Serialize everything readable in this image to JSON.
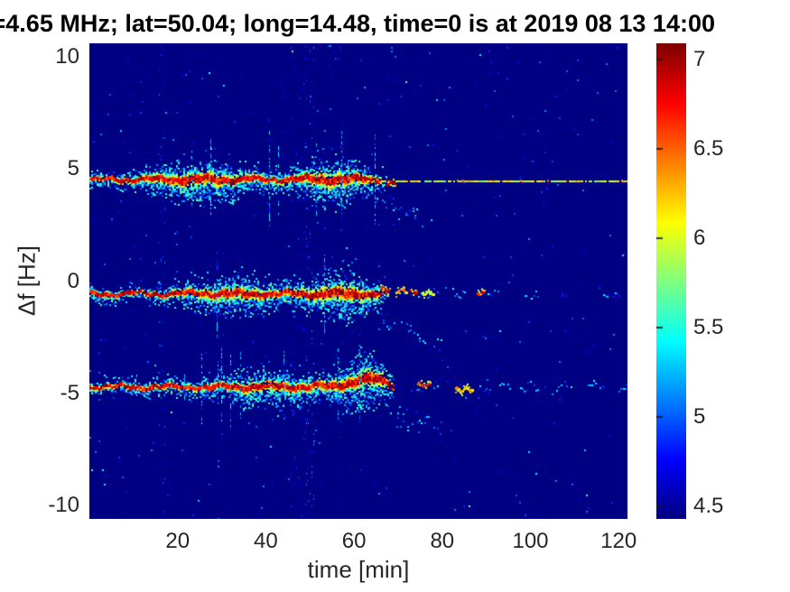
{
  "title": {
    "text": "=4.65 MHz;  lat=50.04; long=14.48, time=0 is at 2019 08 13 14:00"
  },
  "axes": {
    "x": {
      "label": "time [min]",
      "ticks": [
        20,
        40,
        60,
        80,
        100,
        120
      ]
    },
    "y": {
      "label": "Δf [Hz]",
      "ticks": [
        10,
        5,
        0,
        -5,
        -10
      ]
    }
  },
  "colorbar_ticks": [
    7,
    6.5,
    6,
    5.5,
    5,
    4.5
  ],
  "chart_data": {
    "type": "heatmap",
    "subtype": "doppler-spectrogram",
    "title": "=4.65 MHz;  lat=50.04; long=14.48, time=0 is at 2019 08 13 14:00",
    "xlabel": "time [min]",
    "ylabel": "Δf [Hz]",
    "xlim": [
      0,
      122
    ],
    "ylim": [
      -10.6,
      10.6
    ],
    "x_ticks": [
      20,
      40,
      60,
      80,
      100,
      120
    ],
    "y_ticks": [
      10,
      5,
      0,
      -5,
      -10
    ],
    "colormap": "jet",
    "colorbar": {
      "range": [
        4.43,
        7.09
      ],
      "ticks": [
        7,
        6.5,
        6,
        5.5,
        5,
        4.5
      ]
    },
    "background_value": 4.44,
    "seed": 7,
    "noise": {
      "p": 0.005,
      "spread": 0.6
    },
    "streaks": [
      {
        "t": 8,
        "halfw": 2,
        "p": 0.02,
        "vmax": 4.85
      },
      {
        "t": 16.5,
        "halfw": 3,
        "p": 0.07,
        "vmax": 5.2
      },
      {
        "t": 30,
        "halfw": 2,
        "p": 0.02,
        "vmax": 4.85
      },
      {
        "t": 47.5,
        "halfw": 9,
        "p": 0.045,
        "vmax": 5.0
      },
      {
        "t": 50,
        "halfw": 4,
        "p": 0.08,
        "vmax": 5.2
      },
      {
        "t": 57,
        "halfw": 2,
        "p": 0.04,
        "vmax": 5.0
      },
      {
        "t": 105,
        "halfw": 1,
        "p": 0.015,
        "vmax": 4.8
      }
    ],
    "bands": [
      {
        "name": "upper-trace",
        "center_hz": 4.55,
        "base_sigma": 0.14,
        "humps": [
          {
            "t": 25,
            "w": 8,
            "amp": 0.25
          },
          {
            "t": 55,
            "w": 6,
            "amp": 0.28
          }
        ],
        "dense_until": 63,
        "fade": 6,
        "spike_prob": 0.06,
        "tail": {
          "t0": 62,
          "t1": 78,
          "hz0": 4.0,
          "hz1": 2.8,
          "p": 0.38
        },
        "after": {
          "mode": "line",
          "line_hz": 4.45,
          "v0": 5.7,
          "vspread": 0.65,
          "hot": [
            {
              "t": 63.5,
              "len": 2.5,
              "hz": 4.5,
              "v": 7.0
            },
            {
              "t": 67.5,
              "len": 2.0,
              "hz": 4.4,
              "v": 7.0
            }
          ]
        }
      },
      {
        "name": "middle-trace",
        "center_hz": -0.55,
        "base_sigma": 0.13,
        "humps": [
          {
            "t": 32,
            "w": 8,
            "amp": 0.22
          },
          {
            "t": 57,
            "w": 6,
            "amp": 0.3
          }
        ],
        "dense_until": 64,
        "fade": 5,
        "spike_prob": 0.055,
        "tail": {
          "t0": 58,
          "t1": 80,
          "hz0": -1.1,
          "hz1": -2.8,
          "p": 0.34
        },
        "after": {
          "mode": "sparse",
          "gap": 7,
          "len": 4,
          "hot": [
            {
              "t": 66,
              "len": 2.0,
              "hz": -0.3,
              "v": 6.8
            },
            {
              "t": 69.5,
              "len": 2.5,
              "hz": -0.4,
              "v": 6.4
            },
            {
              "t": 72.5,
              "len": 2.0,
              "hz": -0.45,
              "v": 6.9
            },
            {
              "t": 75.5,
              "len": 3.0,
              "hz": -0.5,
              "v": 6.0
            },
            {
              "t": 88,
              "len": 2.0,
              "hz": -0.5,
              "v": 6.8
            }
          ]
        }
      },
      {
        "name": "lower-trace",
        "center_hz": -4.7,
        "base_sigma": 0.14,
        "humps": [
          {
            "t": 42,
            "w": 9,
            "amp": 0.18
          },
          {
            "t": 62,
            "w": 5,
            "amp": 0.3
          }
        ],
        "bulge": {
          "t": 63,
          "w": 4,
          "amp": 0.35
        },
        "dense_until": 66,
        "fade": 4,
        "spike_prob": 0.065,
        "tail": {
          "t0": 58,
          "t1": 80,
          "hz0": -5.1,
          "hz1": -6.5,
          "p": 0.4
        },
        "after": {
          "mode": "sparse",
          "gap": 3,
          "len": 5,
          "hot": [
            {
              "t": 74.5,
              "len": 3.0,
              "hz": -4.6,
              "v": 6.8
            },
            {
              "t": 83,
              "len": 4.0,
              "hz": -4.8,
              "v": 6.3
            }
          ]
        }
      }
    ]
  }
}
